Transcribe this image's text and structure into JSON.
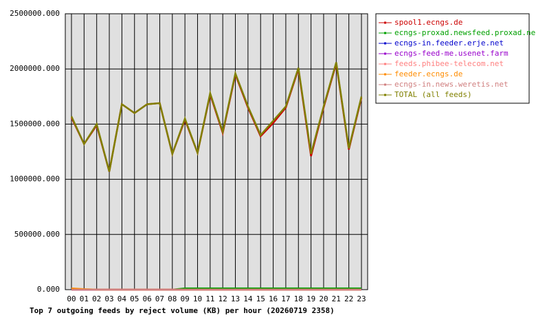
{
  "chart_data": {
    "type": "line",
    "title": "Top 7 outgoing feeds by reject volume (KB) per hour (20260719 2358)",
    "categories": [
      "00",
      "01",
      "02",
      "03",
      "04",
      "05",
      "06",
      "07",
      "08",
      "09",
      "10",
      "11",
      "12",
      "13",
      "14",
      "15",
      "16",
      "17",
      "18",
      "19",
      "20",
      "21",
      "22",
      "23"
    ],
    "ylim": [
      0,
      2500000
    ],
    "yticks": [
      {
        "value": 0,
        "label": "0.000"
      },
      {
        "value": 500000,
        "label": "500000.000"
      },
      {
        "value": 1000000,
        "label": "1000000.000"
      },
      {
        "value": 1500000,
        "label": "1500000.000"
      },
      {
        "value": 2000000,
        "label": "2000000.000"
      },
      {
        "value": 2500000,
        "label": "2500000.000"
      }
    ],
    "grid": true,
    "legend": "right",
    "series": [
      {
        "name": "spool1.ecngs.de",
        "color": "#cc0000",
        "values": [
          1560000,
          1320000,
          1490000,
          1070000,
          1680000,
          1600000,
          1680000,
          1690000,
          1230000,
          1540000,
          1240000,
          1770000,
          1420000,
          1950000,
          1650000,
          1390000,
          1510000,
          1650000,
          2000000,
          1210000,
          1650000,
          2050000,
          1270000,
          1740000
        ]
      },
      {
        "name": "ecngs-proxad.newsfeed.proxad.net",
        "color": "#00a000",
        "values": [
          0,
          0,
          0,
          0,
          0,
          0,
          0,
          0,
          0,
          12000,
          12000,
          12000,
          12000,
          12000,
          12000,
          12000,
          12000,
          12000,
          12000,
          12000,
          12000,
          12000,
          12000,
          12000
        ]
      },
      {
        "name": "ecngs-in.feeder.erje.net",
        "color": "#0000cc",
        "values": [
          0,
          0,
          0,
          0,
          0,
          0,
          0,
          0,
          0,
          0,
          0,
          0,
          0,
          0,
          0,
          0,
          0,
          0,
          0,
          0,
          0,
          0,
          0,
          0
        ]
      },
      {
        "name": "ecngs-feed-me.usenet.farm",
        "color": "#9900cc",
        "values": [
          0,
          0,
          0,
          0,
          0,
          0,
          0,
          0,
          0,
          0,
          0,
          0,
          0,
          0,
          0,
          0,
          0,
          0,
          0,
          0,
          0,
          0,
          0,
          0
        ]
      },
      {
        "name": "feeds.phibee-telecom.net",
        "color": "#ff8080",
        "values": [
          0,
          0,
          0,
          0,
          0,
          0,
          0,
          0,
          0,
          0,
          0,
          0,
          0,
          0,
          0,
          0,
          0,
          0,
          0,
          0,
          0,
          0,
          0,
          0
        ]
      },
      {
        "name": "feeder.ecngs.de",
        "color": "#ff8c00",
        "values": [
          12000,
          5000,
          0,
          0,
          0,
          0,
          0,
          0,
          0,
          0,
          0,
          0,
          0,
          0,
          0,
          0,
          0,
          0,
          0,
          0,
          0,
          0,
          0,
          0
        ]
      },
      {
        "name": "ecngs-in.news.weretis.net",
        "color": "#d08080",
        "values": [
          0,
          0,
          0,
          0,
          0,
          0,
          0,
          0,
          0,
          0,
          0,
          0,
          0,
          0,
          0,
          0,
          0,
          0,
          0,
          0,
          0,
          0,
          0,
          0
        ]
      },
      {
        "name": "TOTAL (all feeds)",
        "color": "#808000",
        "values": [
          1570000,
          1320000,
          1500000,
          1070000,
          1680000,
          1600000,
          1680000,
          1690000,
          1230000,
          1550000,
          1240000,
          1780000,
          1430000,
          1960000,
          1660000,
          1400000,
          1530000,
          1660000,
          2010000,
          1230000,
          1660000,
          2060000,
          1280000,
          1750000
        ]
      }
    ]
  }
}
